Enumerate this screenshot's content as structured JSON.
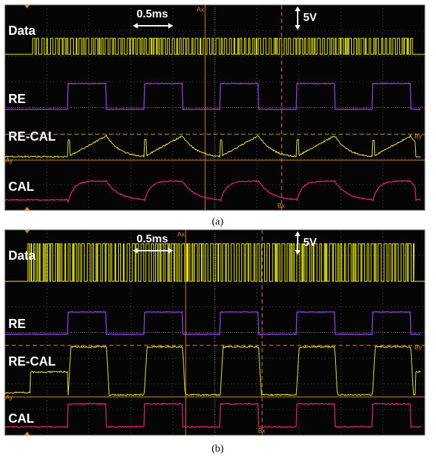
{
  "panels": [
    {
      "caption": "(a)",
      "labels": [
        "Data",
        "RE",
        "RE-CAL",
        "CAL"
      ],
      "time_scale": "0.5ms",
      "volt_scale": "5V",
      "cursors": [
        "Ax",
        "Bx",
        "Ay",
        "By"
      ]
    },
    {
      "caption": "(b)",
      "labels": [
        "Data",
        "RE",
        "RE-CAL",
        "CAL"
      ],
      "time_scale": "0.5ms",
      "volt_scale": "5V",
      "cursors": [
        "Ax",
        "Bx",
        "Ay",
        "By"
      ]
    }
  ]
}
